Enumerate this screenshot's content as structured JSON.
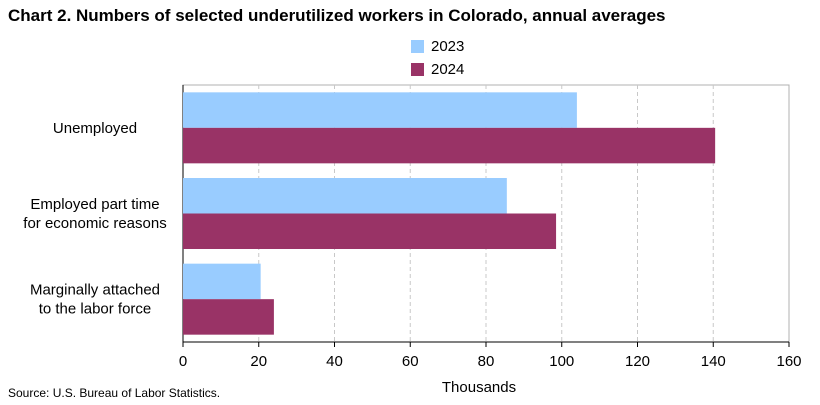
{
  "title": "Chart 2. Numbers of selected underutilized workers in Colorado, annual averages",
  "source": "Source: U.S. Bureau of Labor Statistics.",
  "chart_data": {
    "type": "bar",
    "orientation": "horizontal",
    "title": "Chart 2. Numbers of selected underutilized workers in Colorado, annual averages",
    "xlabel": "Thousands",
    "ylabel": "",
    "xlim": [
      0,
      160
    ],
    "xticks": [
      "0",
      "20",
      "40",
      "60",
      "80",
      "100",
      "120",
      "140",
      "160"
    ],
    "categories": [
      [
        "Unemployed"
      ],
      [
        "Employed part time",
        "for economic reasons"
      ],
      [
        "Marginally attached",
        "to the labor force"
      ]
    ],
    "series": [
      {
        "name": "2023",
        "color": "#99ccff",
        "values": [
          104,
          85.5,
          20.5
        ]
      },
      {
        "name": "2024",
        "color": "#993366",
        "values": [
          140.5,
          98.5,
          24
        ]
      }
    ],
    "grid": "vertical-dashed",
    "legend": "top-center"
  }
}
